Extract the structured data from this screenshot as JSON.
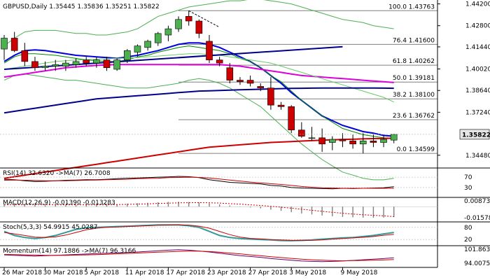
{
  "chart_data": {
    "type": "candlestick",
    "header": {
      "symbol": "GBPUSD,Daily",
      "open": "1.35445",
      "high": "1.35836",
      "low": "1.35251",
      "close": "1.35822"
    },
    "current_price": "1.35822",
    "price_axis_labels": [
      "1.44200",
      "1.42800",
      "1.41440",
      "1.40020",
      "1.38640",
      "1.37240",
      "1.35822",
      "1.34480"
    ],
    "price_range": [
      1.3375,
      1.4445
    ],
    "x_labels": [
      "26 Mar 2018",
      "30 Mar 2018",
      "5 Apr 2018",
      "11 Apr 2018",
      "17 Apr 2018",
      "23 Apr 2018",
      "27 Apr 2018",
      "3 May 2018",
      "9 May 2018"
    ],
    "fibonacci": [
      {
        "label": "100.0 1.43763",
        "value": 1.43763
      },
      {
        "label": "76.4 1.41600",
        "value": 1.416
      },
      {
        "label": "61.8 1.40262",
        "value": 1.40262
      },
      {
        "label": "50.0 1.39181",
        "value": 1.39181
      },
      {
        "label": "38.2 1.38100",
        "value": 1.381
      },
      {
        "label": "23.6 1.36762",
        "value": 1.36762
      },
      {
        "label": "0.0 1.34599",
        "value": 1.34599
      }
    ],
    "candles": [
      {
        "o": 1.413,
        "h": 1.422,
        "l": 1.406,
        "c": 1.42
      },
      {
        "o": 1.42,
        "h": 1.424,
        "l": 1.411,
        "c": 1.412
      },
      {
        "o": 1.412,
        "h": 1.417,
        "l": 1.402,
        "c": 1.405
      },
      {
        "o": 1.405,
        "h": 1.408,
        "l": 1.399,
        "c": 1.401
      },
      {
        "o": 1.401,
        "h": 1.405,
        "l": 1.399,
        "c": 1.402
      },
      {
        "o": 1.402,
        "h": 1.406,
        "l": 1.399,
        "c": 1.403
      },
      {
        "o": 1.402,
        "h": 1.406,
        "l": 1.399,
        "c": 1.404
      },
      {
        "o": 1.403,
        "h": 1.407,
        "l": 1.401,
        "c": 1.405
      },
      {
        "o": 1.406,
        "h": 1.408,
        "l": 1.402,
        "c": 1.404
      },
      {
        "o": 1.404,
        "h": 1.408,
        "l": 1.401,
        "c": 1.406
      },
      {
        "o": 1.406,
        "h": 1.408,
        "l": 1.399,
        "c": 1.401
      },
      {
        "o": 1.4,
        "h": 1.407,
        "l": 1.399,
        "c": 1.406
      },
      {
        "o": 1.406,
        "h": 1.413,
        "l": 1.404,
        "c": 1.412
      },
      {
        "o": 1.411,
        "h": 1.416,
        "l": 1.408,
        "c": 1.415
      },
      {
        "o": 1.414,
        "h": 1.419,
        "l": 1.412,
        "c": 1.418
      },
      {
        "o": 1.417,
        "h": 1.424,
        "l": 1.415,
        "c": 1.423
      },
      {
        "o": 1.422,
        "h": 1.428,
        "l": 1.418,
        "c": 1.426
      },
      {
        "o": 1.426,
        "h": 1.434,
        "l": 1.424,
        "c": 1.432
      },
      {
        "o": 1.434,
        "h": 1.4376,
        "l": 1.428,
        "c": 1.431
      },
      {
        "o": 1.431,
        "h": 1.432,
        "l": 1.42,
        "c": 1.423
      },
      {
        "o": 1.418,
        "h": 1.422,
        "l": 1.404,
        "c": 1.406
      },
      {
        "o": 1.406,
        "h": 1.408,
        "l": 1.402,
        "c": 1.404
      },
      {
        "o": 1.401,
        "h": 1.404,
        "l": 1.391,
        "c": 1.393
      },
      {
        "o": 1.393,
        "h": 1.395,
        "l": 1.39,
        "c": 1.392
      },
      {
        "o": 1.393,
        "h": 1.396,
        "l": 1.389,
        "c": 1.391
      },
      {
        "o": 1.389,
        "h": 1.391,
        "l": 1.386,
        "c": 1.388
      },
      {
        "o": 1.388,
        "h": 1.395,
        "l": 1.374,
        "c": 1.377
      },
      {
        "o": 1.377,
        "h": 1.379,
        "l": 1.374,
        "c": 1.376
      },
      {
        "o": 1.376,
        "h": 1.377,
        "l": 1.359,
        "c": 1.361
      },
      {
        "o": 1.361,
        "h": 1.366,
        "l": 1.356,
        "c": 1.357
      },
      {
        "o": 1.356,
        "h": 1.363,
        "l": 1.354,
        "c": 1.356
      },
      {
        "o": 1.356,
        "h": 1.362,
        "l": 1.347,
        "c": 1.352
      },
      {
        "o": 1.353,
        "h": 1.357,
        "l": 1.348,
        "c": 1.355
      },
      {
        "o": 1.355,
        "h": 1.359,
        "l": 1.35,
        "c": 1.354
      },
      {
        "o": 1.354,
        "h": 1.358,
        "l": 1.349,
        "c": 1.352
      },
      {
        "o": 1.352,
        "h": 1.359,
        "l": 1.346,
        "c": 1.354
      },
      {
        "o": 1.354,
        "h": 1.358,
        "l": 1.35,
        "c": 1.353
      },
      {
        "o": 1.353,
        "h": 1.358,
        "l": 1.35,
        "c": 1.355
      },
      {
        "o": 1.3545,
        "h": 1.3584,
        "l": 1.3525,
        "c": 1.3582
      }
    ],
    "moving_averages": [
      {
        "color": "#0000dd",
        "width": 2,
        "values": [
          1.405,
          1.409,
          1.412,
          1.4125,
          1.412,
          1.411,
          1.41,
          1.409,
          1.4085,
          1.408,
          1.4075,
          1.407,
          1.408,
          1.409,
          1.4105,
          1.412,
          1.414,
          1.416,
          1.417,
          1.417,
          1.416,
          1.414,
          1.411,
          1.408,
          1.405,
          1.401,
          1.396,
          1.391,
          1.385,
          1.38,
          1.375,
          1.37,
          1.367,
          1.364,
          1.362,
          1.36,
          1.359,
          1.3575,
          1.357
        ]
      },
      {
        "color": "#008800",
        "width": 1,
        "values": [
          1.404,
          1.408,
          1.41,
          1.41,
          1.4095,
          1.409,
          1.408,
          1.407,
          1.406,
          1.4055,
          1.405,
          1.405,
          1.406,
          1.408,
          1.409,
          1.411,
          1.4125,
          1.414,
          1.415,
          1.414,
          1.413,
          1.412,
          1.41,
          1.407,
          1.405,
          1.401,
          1.396,
          1.392,
          1.386,
          1.38,
          1.375,
          1.37,
          1.366,
          1.362,
          1.36,
          1.358,
          1.357,
          1.356,
          1.3558
        ]
      },
      {
        "color": "#dd00dd",
        "width": 2,
        "values": [
          1.395,
          1.396,
          1.397,
          1.398,
          1.399,
          1.4,
          1.401,
          1.4015,
          1.402,
          1.4025,
          1.4028,
          1.403,
          1.403,
          1.403,
          1.403,
          1.403,
          1.403,
          1.403,
          1.403,
          1.403,
          1.403,
          1.403,
          1.4025,
          1.402,
          1.401,
          1.4,
          1.399,
          1.398,
          1.397,
          1.396,
          1.3955,
          1.395,
          1.3945,
          1.394,
          1.3935,
          1.393,
          1.3925,
          1.392,
          1.3915
        ]
      },
      {
        "color": "#66cc66",
        "width": 1,
        "values": [
          1.4,
          1.401,
          1.402,
          1.403,
          1.404,
          1.405,
          1.4055,
          1.406,
          1.4062,
          1.4065,
          1.4068,
          1.407,
          1.4072,
          1.4075,
          1.408,
          1.4085,
          1.409,
          1.4095,
          1.41,
          1.41,
          1.4095,
          1.409,
          1.408,
          1.407,
          1.406,
          1.405,
          1.404,
          1.402,
          1.4,
          1.398,
          1.396,
          1.394,
          1.392,
          1.39,
          1.388,
          1.386,
          1.384,
          1.382,
          1.379
        ]
      },
      {
        "color": "#000088",
        "width": 2,
        "values": [
          1.372,
          1.373,
          1.374,
          1.375,
          1.376,
          1.377,
          1.378,
          1.379,
          1.38,
          1.381,
          1.3815,
          1.382,
          1.3825,
          1.383,
          1.3835,
          1.384,
          1.3845,
          1.385,
          1.3855,
          1.386,
          1.3862,
          1.3864,
          1.3866,
          1.3868,
          1.387,
          1.3872,
          1.3874,
          1.3876,
          1.3877,
          1.3878,
          1.3879,
          1.388,
          1.388,
          1.388,
          1.388,
          1.388,
          1.388,
          1.3879,
          1.3878
        ]
      },
      {
        "color": "#cc0000",
        "width": 2,
        "values": [
          1.33,
          1.331,
          1.332,
          1.333,
          1.334,
          1.335,
          1.336,
          1.337,
          1.338,
          1.339,
          1.34,
          1.341,
          1.342,
          1.343,
          1.344,
          1.345,
          1.346,
          1.347,
          1.348,
          1.349,
          1.35,
          1.3505,
          1.351,
          1.3515,
          1.352,
          1.3525,
          1.353,
          1.3533,
          1.3536,
          1.3539,
          1.3542,
          1.3545,
          1.3547,
          1.3549,
          1.3551,
          1.3553,
          1.3555,
          1.3556,
          1.3557
        ]
      }
    ],
    "trendlines": [
      {
        "color": "#000088",
        "x1": 0,
        "y1": 1.4,
        "x2": 33,
        "y2": 1.4145
      },
      {
        "color": "#000000",
        "x1": 18,
        "y1": 1.4376,
        "x2": 21,
        "y2": 1.427,
        "dashed": true
      }
    ],
    "bands": [
      {
        "color": "#4caf50",
        "values": [
          1.415,
          1.42,
          1.424,
          1.425,
          1.425,
          1.425,
          1.424,
          1.423,
          1.423,
          1.422,
          1.422,
          1.423,
          1.424,
          1.426,
          1.43,
          1.434,
          1.436,
          1.438,
          1.44,
          1.441,
          1.442,
          1.443,
          1.444,
          1.444,
          1.445,
          1.445,
          1.444,
          1.443,
          1.442,
          1.44,
          1.438,
          1.436,
          1.434,
          1.432,
          1.431,
          1.43,
          1.428,
          1.427,
          1.426
        ]
      },
      {
        "color": "#4caf50",
        "values": [
          1.393,
          1.396,
          1.397,
          1.396,
          1.395,
          1.394,
          1.393,
          1.393,
          1.392,
          1.391,
          1.39,
          1.389,
          1.388,
          1.388,
          1.388,
          1.389,
          1.39,
          1.391,
          1.393,
          1.394,
          1.393,
          1.391,
          1.388,
          1.384,
          1.38,
          1.376,
          1.37,
          1.364,
          1.358,
          1.352,
          1.347,
          1.342,
          1.338,
          1.334,
          1.332,
          1.33,
          1.329,
          1.329,
          1.33
        ]
      }
    ],
    "indicators": [
      {
        "label": "RSI(14) 32.6320 ->MA(7) 26.7008",
        "axis_labels": [
          "70",
          "30"
        ],
        "range": [
          0,
          100
        ],
        "lines": [
          {
            "color": "#000000",
            "width": 1,
            "values": [
              62,
              60,
              56,
              53,
              54,
              56,
              58,
              59,
              60,
              60,
              62,
              64,
              66,
              67,
              68,
              70,
              71,
              73,
              72,
              68,
              60,
              55,
              50,
              48,
              46,
              44,
              38,
              36,
              30,
              28,
              27,
              26,
              25,
              27,
              26,
              27,
              28,
              29,
              33
            ]
          },
          {
            "color": "#cc0000",
            "width": 1,
            "values": [
              58,
              59,
              58,
              57,
              56,
              56,
              56,
              57,
              58,
              59,
              60,
              61,
              62,
              64,
              65,
              66,
              68,
              69,
              70,
              69,
              67,
              63,
              59,
              55,
              51,
              48,
              45,
              42,
              38,
              34,
              31,
              29,
              28,
              27,
              27,
              27,
              27,
              27,
              27
            ]
          }
        ]
      },
      {
        "label": "MACD(12,26,9) -0.01390 -0.013283",
        "axis_labels": [
          "0.008736",
          "-0.015789"
        ],
        "range": [
          -0.0175,
          0.0105
        ],
        "zero_line": true,
        "bars": [
          0.003,
          0.0032,
          0.003,
          0.0028,
          0.0026,
          0.0024,
          0.0024,
          0.0024,
          0.0026,
          0.0028,
          0.003,
          0.0034,
          0.004,
          0.0046,
          0.0052,
          0.006,
          0.0064,
          0.0066,
          0.0062,
          0.0056,
          0.0044,
          0.003,
          0.0016,
          0.0004,
          -0.001,
          -0.0022,
          -0.004,
          -0.0056,
          -0.0074,
          -0.009,
          -0.0104,
          -0.0118,
          -0.0128,
          -0.0136,
          -0.0142,
          -0.0146,
          -0.0148,
          -0.0146,
          -0.0139
        ],
        "signal": {
          "color": "#cc0000",
          "values": [
            0.0026,
            0.0027,
            0.0028,
            0.0028,
            0.0028,
            0.0027,
            0.0026,
            0.0026,
            0.0026,
            0.0026,
            0.0027,
            0.0028,
            0.0031,
            0.0034,
            0.0038,
            0.0043,
            0.0047,
            0.0051,
            0.0053,
            0.0054,
            0.0052,
            0.0048,
            0.0041,
            0.0034,
            0.0025,
            0.0016,
            0.0005,
            -0.0007,
            -0.002,
            -0.0034,
            -0.0048,
            -0.0062,
            -0.0075,
            -0.0087,
            -0.0098,
            -0.0107,
            -0.0115,
            -0.0122,
            -0.0133
          ]
        }
      },
      {
        "label": "Stoch(5,3,3) 54.9915 45.0287",
        "axis_labels": [
          "80",
          "20"
        ],
        "range": [
          0,
          100
        ],
        "lines": [
          {
            "color": "#339999",
            "width": 2,
            "values": [
              60,
              40,
              30,
              25,
              30,
              40,
              55,
              70,
              78,
              80,
              82,
              84,
              86,
              88,
              90,
              92,
              92,
              92,
              88,
              80,
              60,
              40,
              30,
              25,
              22,
              20,
              18,
              15,
              14,
              16,
              18,
              22,
              25,
              28,
              30,
              35,
              40,
              48,
              55
            ]
          },
          {
            "color": "#cc0000",
            "width": 1,
            "values": [
              55,
              48,
              40,
              32,
              30,
              33,
              42,
              55,
              68,
              76,
              80,
              82,
              84,
              86,
              88,
              90,
              91,
              92,
              91,
              86,
              76,
              60,
              44,
              32,
              26,
              23,
              20,
              18,
              16,
              15,
              16,
              18,
              22,
              25,
              28,
              31,
              35,
              41,
              45
            ]
          }
        ]
      },
      {
        "label": "Momentum(14) 97.1886 ->MA(7) 96.3166",
        "axis_labels": [
          "101.8637",
          "94.0075"
        ],
        "range": [
          93.5,
          102.4
        ],
        "lines": [
          {
            "color": "#660066",
            "width": 1,
            "values": [
              98.6,
              98.4,
              98.2,
              98.0,
              98.2,
              98.4,
              98.6,
              98.8,
              99.0,
              99.2,
              99.4,
              99.6,
              99.8,
              100.0,
              100.3,
              100.6,
              100.9,
              101.1,
              100.9,
              100.5,
              100.0,
              99.4,
              98.8,
              98.2,
              97.8,
              97.4,
              96.8,
              96.4,
              96.0,
              95.6,
              95.4,
              95.3,
              95.4,
              95.6,
              95.9,
              96.2,
              96.5,
              96.8,
              97.2
            ]
          },
          {
            "color": "#cc0000",
            "width": 1,
            "values": [
              98.8,
              98.7,
              98.6,
              98.5,
              98.4,
              98.4,
              98.4,
              98.5,
              98.6,
              98.7,
              98.9,
              99.1,
              99.3,
              99.5,
              99.7,
              99.9,
              100.1,
              100.3,
              100.4,
              100.4,
              100.2,
              99.9,
              99.5,
              99.1,
              98.6,
              98.2,
              97.7,
              97.3,
              96.9,
              96.5,
              96.2,
              96.0,
              95.8,
              95.7,
              95.8,
              95.9,
              96.0,
              96.1,
              96.3
            ]
          }
        ]
      }
    ],
    "colors": {
      "bull": "#4caf50",
      "bear": "#cc0000",
      "price_box": "#e6e6e6"
    }
  }
}
